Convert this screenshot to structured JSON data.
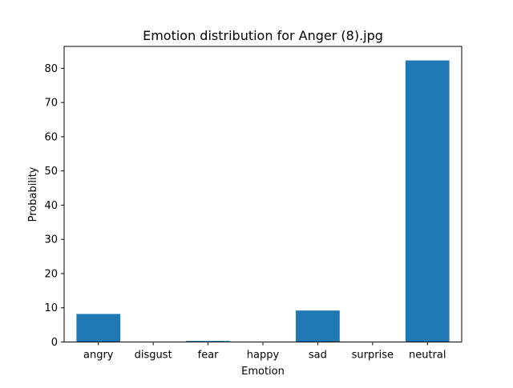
{
  "chart_data": {
    "type": "bar",
    "title": "Emotion distribution for Anger (8).jpg",
    "xlabel": "Emotion",
    "ylabel": "Probability",
    "categories": [
      "angry",
      "disgust",
      "fear",
      "happy",
      "sad",
      "surprise",
      "neutral"
    ],
    "values": [
      8.2,
      0.0,
      0.3,
      0.0,
      9.2,
      0.0,
      82.3
    ],
    "ylim": [
      0,
      86.4
    ],
    "yticks": [
      0,
      10,
      20,
      30,
      40,
      50,
      60,
      70,
      80
    ],
    "grid": false,
    "legend": "none",
    "bar_color": "#1f77b4"
  }
}
